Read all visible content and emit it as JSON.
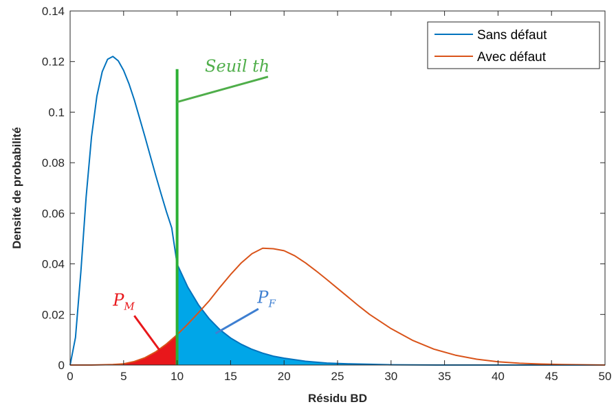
{
  "chart_data": {
    "type": "line",
    "title": "",
    "xlabel": "Résidu BD",
    "ylabel": "Densité de probabilité",
    "xlim": [
      0,
      50
    ],
    "ylim": [
      0,
      0.14
    ],
    "xticks": [
      0,
      5,
      10,
      15,
      20,
      25,
      30,
      35,
      40,
      45,
      50
    ],
    "yticks": [
      0,
      0.02,
      0.04,
      0.06,
      0.08,
      0.1,
      0.12,
      0.14
    ],
    "xtick_labels": [
      "0",
      "5",
      "10",
      "15",
      "20",
      "25",
      "30",
      "35",
      "40",
      "45",
      "50"
    ],
    "ytick_labels": [
      "0",
      "0.02",
      "0.04",
      "0.06",
      "0.08",
      "0.1",
      "0.12",
      "0.14"
    ],
    "grid": false,
    "legend_position": "top-right",
    "threshold_x": 10,
    "threshold_top": 0.117,
    "series": [
      {
        "name": "Sans défaut",
        "color": "#0072BD",
        "fill_color": "#00A6E8",
        "x": [
          0,
          0.5,
          1,
          1.5,
          2,
          2.5,
          3,
          3.5,
          4,
          4.5,
          5,
          5.5,
          6,
          6.5,
          7,
          7.5,
          8,
          8.5,
          9,
          9.5,
          10,
          11,
          12,
          13,
          14,
          15,
          16,
          17,
          18,
          19,
          20,
          22,
          24,
          26,
          28,
          30,
          35,
          40,
          45,
          50
        ],
        "y": [
          0,
          0.0109,
          0.0368,
          0.0665,
          0.0902,
          0.1063,
          0.116,
          0.1209,
          0.122,
          0.1203,
          0.1165,
          0.1112,
          0.1048,
          0.0976,
          0.0902,
          0.0826,
          0.075,
          0.0677,
          0.0607,
          0.0542,
          0.0399,
          0.0308,
          0.0238,
          0.0183,
          0.014,
          0.0107,
          0.0082,
          0.0062,
          0.0047,
          0.0035,
          0.0027,
          0.0015,
          0.0008,
          0.0005,
          0.0003,
          0.0001,
          0.0,
          0.0,
          0.0,
          0.0
        ]
      },
      {
        "name": "Avec défaut",
        "color": "#D95319",
        "fill_color": "#E8171B",
        "x": [
          0,
          2,
          4,
          5,
          6,
          7,
          8,
          9,
          10,
          11,
          12,
          13,
          14,
          15,
          16,
          17,
          18,
          19,
          20,
          21,
          22,
          23,
          24,
          25,
          26,
          27,
          28,
          30,
          32,
          34,
          36,
          38,
          40,
          42,
          44,
          46,
          48,
          50
        ],
        "y": [
          0,
          0.0,
          0.0002,
          0.0005,
          0.0014,
          0.0029,
          0.0052,
          0.0083,
          0.012,
          0.0162,
          0.0207,
          0.0254,
          0.0307,
          0.0358,
          0.0404,
          0.044,
          0.0462,
          0.046,
          0.0452,
          0.0432,
          0.0404,
          0.0372,
          0.0338,
          0.0303,
          0.0268,
          0.0233,
          0.02,
          0.0144,
          0.0098,
          0.0063,
          0.0039,
          0.0023,
          0.0013,
          0.0007,
          0.0004,
          0.0002,
          0.0001,
          0.0
        ]
      }
    ],
    "annotations": [
      {
        "id": "seuil",
        "text": "Seuil th",
        "color": "#4FAE4A",
        "x": 12.6,
        "y": 0.116,
        "line_from": [
          10,
          0.104
        ],
        "line_to": [
          18.5,
          0.114
        ]
      },
      {
        "id": "pm",
        "base": "P",
        "sub": "M",
        "color": "#E8171B",
        "x": 4.0,
        "y": 0.0235,
        "line_from": [
          6.0,
          0.0195
        ],
        "line_to": [
          8.6,
          0.0045
        ]
      },
      {
        "id": "pf",
        "base": "P",
        "sub": "F",
        "color": "#3E7FD1",
        "x": 17.5,
        "y": 0.0245,
        "line_from": [
          17.6,
          0.0222
        ],
        "line_to": [
          13.6,
          0.0125
        ]
      }
    ],
    "threshold_color": "#2CB034"
  }
}
